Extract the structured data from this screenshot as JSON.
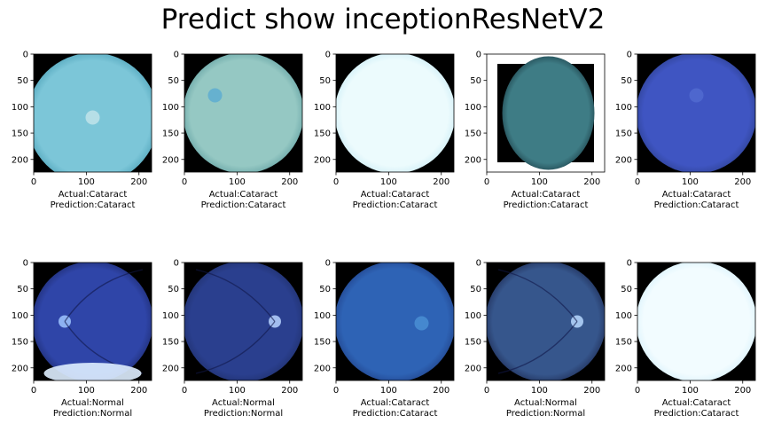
{
  "figure": {
    "title": "Predict show inceptionResNetV2"
  },
  "chart_data": {
    "type": "image-grid",
    "title": "Predict show inceptionResNetV2",
    "rows": 2,
    "cols": 5,
    "xlim": [
      0,
      224
    ],
    "ylim": [
      224,
      0
    ],
    "xticks": [
      "0",
      "100",
      "200"
    ],
    "yticks": [
      "0",
      "50",
      "100",
      "150",
      "200"
    ],
    "grid": false,
    "panels": [
      {
        "actual": "Actual:Cataract",
        "prediction": "Prediction:Cataract",
        "fundus": {
          "style": "hazy",
          "edge": "#4a9fb6",
          "center": "#7cc6d8",
          "spot": "#e6f4f4",
          "mask": "circle-clipped-bottom"
        }
      },
      {
        "actual": "Actual:Cataract",
        "prediction": "Prediction:Cataract",
        "fundus": {
          "style": "hazy",
          "edge": "#5f9ea0",
          "center": "#95c8c3",
          "spot": "#3f9fd8",
          "mask": "circle"
        }
      },
      {
        "actual": "Actual:Cataract",
        "prediction": "Prediction:Cataract",
        "fundus": {
          "style": "bright",
          "edge": "#c9ebf5",
          "center": "#ecfbfd",
          "spot": "#f5feff",
          "mask": "circle"
        }
      },
      {
        "actual": "Actual:Cataract",
        "prediction": "Prediction:Cataract",
        "fundus": {
          "style": "cropped",
          "edge": "#1c3f48",
          "center": "#3e7c85",
          "spot": "#3f7f85",
          "mask": "cropped"
        }
      },
      {
        "actual": "Actual:Cataract",
        "prediction": "Prediction:Cataract",
        "fundus": {
          "style": "dark",
          "edge": "#2c3f8e",
          "center": "#3f55c2",
          "spot": "#5b77d9",
          "mask": "circle"
        }
      },
      {
        "actual": "Actual:Normal",
        "prediction": "Prediction:Normal",
        "fundus": {
          "style": "retina",
          "edge": "#1d2a6d",
          "center": "#2f45a8",
          "spot": "#9fc6ff",
          "mask": "circle"
        }
      },
      {
        "actual": "Actual:Normal",
        "prediction": "Prediction:Normal",
        "fundus": {
          "style": "retina",
          "edge": "#1f2f6a",
          "center": "#2a3f8e",
          "spot": "#b7d4ff",
          "mask": "circle"
        }
      },
      {
        "actual": "Actual:Cataract",
        "prediction": "Prediction:Cataract",
        "fundus": {
          "style": "hazy",
          "edge": "#1f3f86",
          "center": "#2e63b5",
          "spot": "#5aa8e4",
          "mask": "circle"
        }
      },
      {
        "actual": "Actual:Normal",
        "prediction": "Prediction:Normal",
        "fundus": {
          "style": "retina",
          "edge": "#1d2a52",
          "center": "#36568c",
          "spot": "#b7d8ff",
          "mask": "circle"
        }
      },
      {
        "actual": "Actual:Cataract",
        "prediction": "Prediction:Cataract",
        "fundus": {
          "style": "bright",
          "edge": "#d5f0fb",
          "center": "#f2fcff",
          "spot": "#f7feff",
          "mask": "circle"
        }
      }
    ]
  }
}
